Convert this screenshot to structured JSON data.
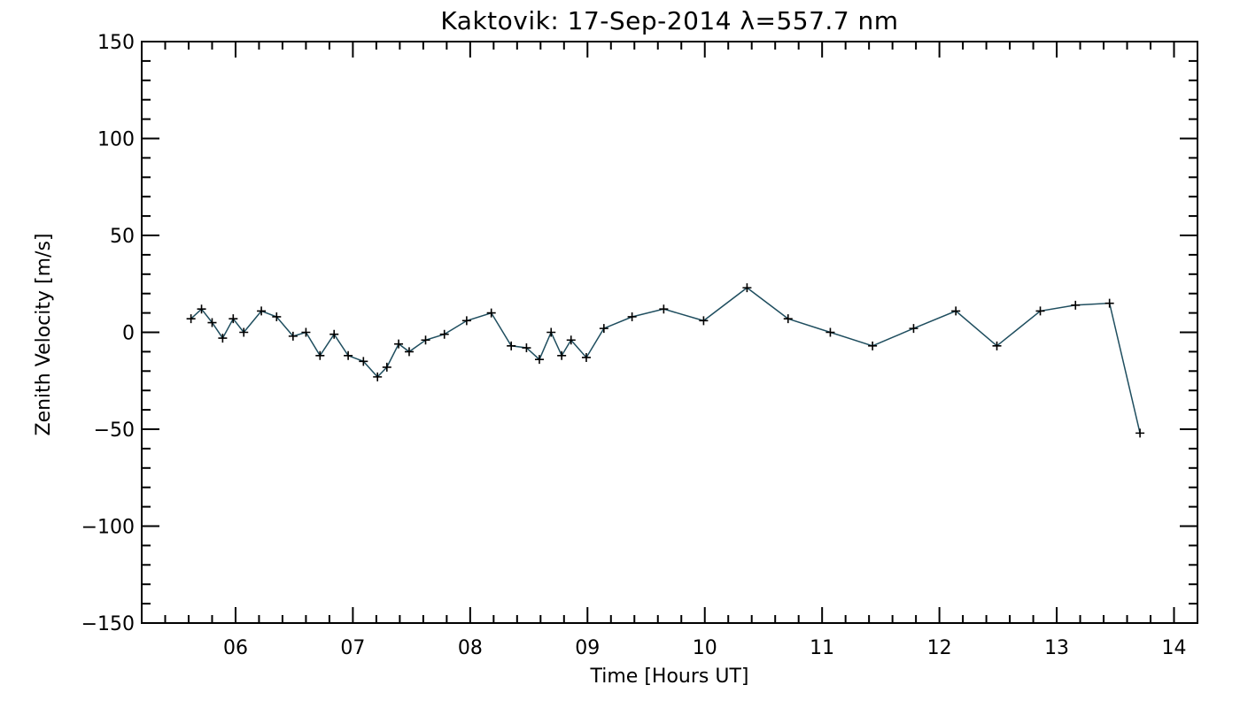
{
  "chart_data": {
    "type": "line",
    "title": "Kaktovik: 17-Sep-2014 λ=557.7 nm",
    "xlabel": "Time [Hours UT]",
    "ylabel": "Zenith Velocity [m/s]",
    "xlim": [
      5.2,
      14.2
    ],
    "ylim": [
      -150,
      150
    ],
    "x_ticks": [
      6,
      7,
      8,
      9,
      10,
      11,
      12,
      13,
      14
    ],
    "x_tick_labels": [
      "06",
      "07",
      "08",
      "09",
      "10",
      "11",
      "12",
      "13",
      "14"
    ],
    "y_ticks": [
      -150,
      -100,
      -50,
      0,
      50,
      100,
      150
    ],
    "y_tick_labels": [
      "−150",
      "−100",
      "−50",
      "0",
      "50",
      "100",
      "150"
    ],
    "grid": false,
    "marker": "plus",
    "colors": {
      "line": "#1f4e5f",
      "marker": "#000000",
      "axes": "#000000"
    },
    "series": [
      {
        "x": [
          5.62,
          5.71,
          5.8,
          5.89,
          5.98,
          6.07,
          6.22,
          6.35,
          6.49,
          6.6,
          6.72,
          6.84,
          6.96,
          7.09,
          7.21,
          7.29,
          7.39,
          7.48,
          7.62,
          7.78,
          7.97,
          8.18,
          8.35,
          8.48,
          8.59,
          8.69,
          8.78,
          8.86,
          8.99,
          9.14,
          9.38,
          9.65,
          9.99,
          10.36,
          10.71,
          11.07,
          11.43,
          11.78,
          12.14,
          12.49,
          12.86,
          13.16,
          13.45,
          13.71
        ],
        "y": [
          7,
          12,
          5,
          -3,
          7,
          0,
          11,
          8,
          -2,
          0,
          -12,
          -1,
          -12,
          -15,
          -23,
          -18,
          -6,
          -10,
          -4,
          -1,
          6,
          10,
          -7,
          -8,
          -14,
          0,
          -12,
          -4,
          -13,
          2,
          8,
          12,
          6,
          23,
          7,
          0,
          -7,
          2,
          11,
          -7,
          11,
          14,
          15,
          -52
        ]
      }
    ]
  }
}
